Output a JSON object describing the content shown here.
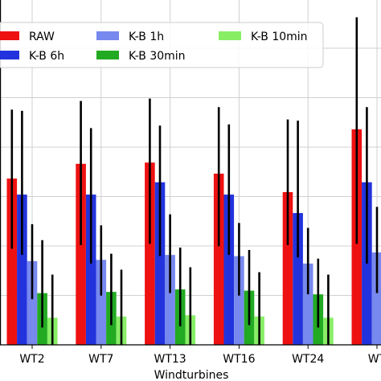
{
  "chart_data": {
    "type": "bar",
    "xlabel": "Windturbines",
    "categories": [
      "WT2",
      "WT7",
      "WT13",
      "WT16",
      "WT24",
      "WT"
    ],
    "series": [
      {
        "name": "RAW",
        "color": "#ee1111",
        "values": [
          6.75,
          7.35,
          7.4,
          6.95,
          6.2,
          8.75
        ],
        "err_low": [
          3.9,
          4.05,
          4.1,
          4.0,
          4.05,
          4.1
        ],
        "err_high": [
          9.55,
          9.9,
          10.0,
          9.65,
          9.15,
          13.3
        ]
      },
      {
        "name": "K-B 6h",
        "color": "#2233dd",
        "values": [
          6.1,
          6.1,
          6.6,
          6.1,
          5.35,
          6.6
        ],
        "err_low": [
          3.65,
          3.3,
          3.6,
          3.65,
          3.55,
          3.3
        ],
        "err_high": [
          9.5,
          8.8,
          8.9,
          8.95,
          9.1,
          9.65
        ]
      },
      {
        "name": "K-B 1h",
        "color": "#7788ee",
        "values": [
          3.4,
          3.45,
          3.65,
          3.6,
          3.3,
          3.75
        ],
        "err_low": [
          1.85,
          2.0,
          2.1,
          2.0,
          2.05,
          2.1
        ],
        "err_high": [
          4.9,
          4.85,
          5.3,
          4.95,
          4.75,
          5.6
        ]
      },
      {
        "name": "K-B 30min",
        "color": "#22aa22",
        "values": [
          2.1,
          2.15,
          2.25,
          2.2,
          2.05,
          2.2
        ],
        "err_low": [
          0.7,
          0.8,
          0.75,
          0.8,
          0.7,
          0.8
        ],
        "err_high": [
          4.25,
          3.7,
          3.95,
          3.85,
          3.5,
          3.9
        ]
      },
      {
        "name": "K-B 10min",
        "color": "#88ee66",
        "values": [
          1.1,
          1.15,
          1.2,
          1.15,
          1.1,
          1.2
        ],
        "err_low": [
          0.0,
          0.0,
          0.0,
          0.0,
          0.0,
          0.0
        ],
        "err_high": [
          2.85,
          3.05,
          3.15,
          2.95,
          2.85,
          3.05
        ]
      }
    ],
    "legend": {
      "placement": "top",
      "columns": 3
    },
    "grid": true
  }
}
